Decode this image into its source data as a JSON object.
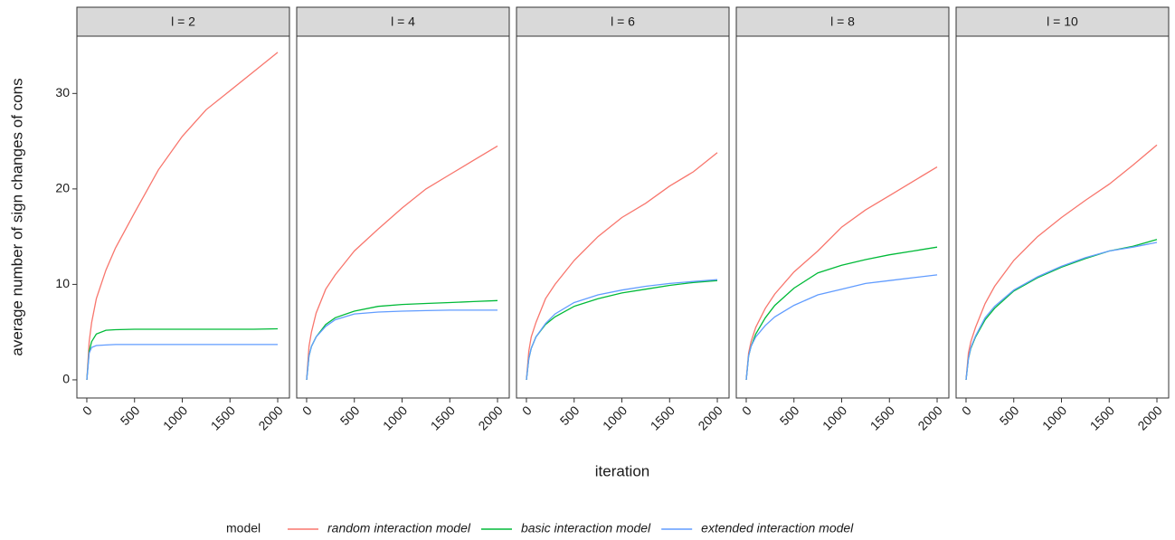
{
  "ylabel": "average number of sign changes of cons",
  "xlabel": "iteration",
  "legend_title": "model",
  "chart_data": [
    {
      "type": "line",
      "title": "l = 2",
      "x": [
        0,
        25,
        50,
        100,
        200,
        300,
        500,
        750,
        1000,
        1250,
        1500,
        1750,
        2000
      ],
      "xlim": [
        -104,
        2123
      ],
      "xticks": [
        0,
        500,
        1000,
        1500,
        2000
      ],
      "ylim": [
        -1.9,
        36
      ],
      "yticks": [
        0,
        10,
        20,
        30
      ],
      "series": [
        {
          "name": "random interaction model",
          "color": "#f8766d",
          "values": [
            0,
            4,
            6,
            8.5,
            11.5,
            13.8,
            17.5,
            22,
            25.5,
            28.3,
            30.3,
            32.3,
            34.3
          ]
        },
        {
          "name": "basic interaction model",
          "color": "#00ba38",
          "values": [
            0,
            3,
            4,
            4.8,
            5.2,
            5.25,
            5.3,
            5.3,
            5.3,
            5.3,
            5.3,
            5.3,
            5.35
          ]
        },
        {
          "name": "extended interaction model",
          "color": "#619cff",
          "values": [
            0,
            2.8,
            3.4,
            3.6,
            3.65,
            3.7,
            3.7,
            3.7,
            3.7,
            3.7,
            3.7,
            3.7,
            3.7
          ]
        }
      ]
    },
    {
      "type": "line",
      "title": "l = 4",
      "x": [
        0,
        25,
        50,
        100,
        200,
        300,
        500,
        750,
        1000,
        1250,
        1500,
        1750,
        2000
      ],
      "xlim": [
        -104,
        2123
      ],
      "xticks": [
        0,
        500,
        1000,
        1500,
        2000
      ],
      "ylim": [
        -1.9,
        36
      ],
      "series": [
        {
          "name": "random interaction model",
          "color": "#f8766d",
          "values": [
            0,
            3.5,
            5,
            7,
            9.5,
            11,
            13.5,
            15.8,
            18,
            20,
            21.5,
            23,
            24.5
          ]
        },
        {
          "name": "basic interaction model",
          "color": "#00ba38",
          "values": [
            0,
            2.5,
            3.5,
            4.5,
            5.8,
            6.5,
            7.2,
            7.7,
            7.9,
            8.0,
            8.1,
            8.2,
            8.3
          ]
        },
        {
          "name": "extended interaction model",
          "color": "#619cff",
          "values": [
            0,
            2.5,
            3.5,
            4.5,
            5.6,
            6.3,
            6.9,
            7.1,
            7.2,
            7.25,
            7.3,
            7.3,
            7.3
          ]
        }
      ]
    },
    {
      "type": "line",
      "title": "l = 6",
      "x": [
        0,
        25,
        50,
        100,
        200,
        300,
        500,
        750,
        1000,
        1250,
        1500,
        1750,
        2000
      ],
      "xlim": [
        -104,
        2123
      ],
      "xticks": [
        0,
        500,
        1000,
        1500,
        2000
      ],
      "ylim": [
        -1.9,
        36
      ],
      "series": [
        {
          "name": "random interaction model",
          "color": "#f8766d",
          "values": [
            0,
            3,
            4.5,
            6,
            8.5,
            10,
            12.5,
            15,
            17,
            18.5,
            20.3,
            21.8,
            23.8
          ]
        },
        {
          "name": "basic interaction model",
          "color": "#00ba38",
          "values": [
            0,
            2.2,
            3.3,
            4.5,
            5.8,
            6.6,
            7.7,
            8.5,
            9.1,
            9.5,
            9.9,
            10.2,
            10.4
          ]
        },
        {
          "name": "extended interaction model",
          "color": "#619cff",
          "values": [
            0,
            2.2,
            3.3,
            4.5,
            5.9,
            6.9,
            8.1,
            8.9,
            9.4,
            9.8,
            10.1,
            10.3,
            10.5
          ]
        }
      ]
    },
    {
      "type": "line",
      "title": "l = 8",
      "x": [
        0,
        25,
        50,
        100,
        200,
        300,
        500,
        750,
        1000,
        1250,
        1500,
        1750,
        2000
      ],
      "xlim": [
        -104,
        2123
      ],
      "xticks": [
        0,
        500,
        1000,
        1500,
        2000
      ],
      "ylim": [
        -1.9,
        36
      ],
      "series": [
        {
          "name": "random interaction model",
          "color": "#f8766d",
          "values": [
            0,
            2.8,
            4,
            5.5,
            7.5,
            9,
            11.3,
            13.5,
            16,
            17.8,
            19.3,
            20.8,
            22.3
          ]
        },
        {
          "name": "basic interaction model",
          "color": "#00ba38",
          "values": [
            0,
            2.5,
            3.5,
            4.8,
            6.5,
            7.8,
            9.6,
            11.2,
            12,
            12.6,
            13.1,
            13.5,
            13.9
          ]
        },
        {
          "name": "extended interaction model",
          "color": "#619cff",
          "values": [
            0,
            2.5,
            3.5,
            4.5,
            5.7,
            6.6,
            7.8,
            8.9,
            9.5,
            10.1,
            10.4,
            10.7,
            11.0
          ]
        }
      ]
    },
    {
      "type": "line",
      "title": "l = 10",
      "x": [
        0,
        25,
        50,
        100,
        200,
        300,
        500,
        750,
        1000,
        1250,
        1500,
        1750,
        2000
      ],
      "xlim": [
        -104,
        2123
      ],
      "xticks": [
        0,
        500,
        1000,
        1500,
        2000
      ],
      "ylim": [
        -1.9,
        36
      ],
      "series": [
        {
          "name": "random interaction model",
          "color": "#f8766d",
          "values": [
            0,
            2.8,
            4,
            5.5,
            8,
            9.8,
            12.5,
            15,
            17,
            18.8,
            20.5,
            22.5,
            24.6
          ]
        },
        {
          "name": "basic interaction model",
          "color": "#00ba38",
          "values": [
            0,
            2.2,
            3.3,
            4.5,
            6.3,
            7.5,
            9.3,
            10.7,
            11.8,
            12.7,
            13.5,
            14,
            14.7
          ]
        },
        {
          "name": "extended interaction model",
          "color": "#619cff",
          "values": [
            0,
            2.2,
            3.4,
            4.6,
            6.5,
            7.7,
            9.4,
            10.8,
            11.9,
            12.8,
            13.5,
            13.9,
            14.4
          ]
        }
      ]
    }
  ]
}
